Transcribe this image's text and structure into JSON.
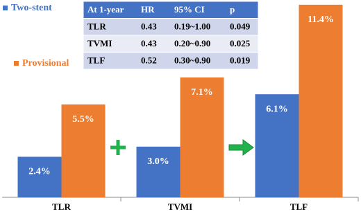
{
  "chart_data": {
    "type": "bar",
    "categories": [
      "TLR",
      "TVMI",
      "TLF"
    ],
    "series": [
      {
        "name": "Two-stent",
        "color": "#4472c4",
        "values": [
          2.4,
          3.0,
          6.1
        ],
        "value_labels": [
          "2.4%",
          "3.0%",
          "6.1%"
        ]
      },
      {
        "name": "Provisional",
        "color": "#ed7d31",
        "values": [
          5.5,
          7.1,
          11.4
        ],
        "value_labels": [
          "5.5%",
          "7.1%",
          "11.4%"
        ]
      }
    ]
  },
  "table": {
    "header": [
      "At 1-year",
      "HR",
      "95% CI",
      "p"
    ],
    "rows": [
      [
        "TLR",
        "0.43",
        "0.19~1.00",
        "0.049"
      ],
      [
        "TVMI",
        "0.43",
        "0.20~0.90",
        "0.025"
      ],
      [
        "TLF",
        "0.52",
        "0.30~0.90",
        "0.019"
      ]
    ]
  }
}
